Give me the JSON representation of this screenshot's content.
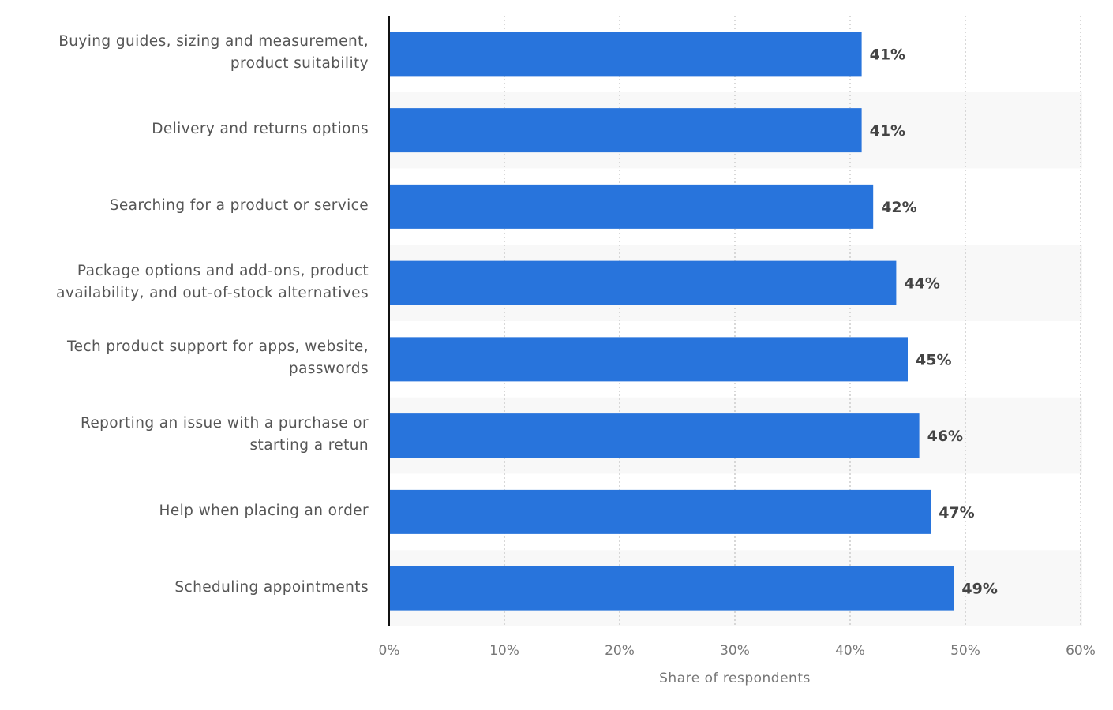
{
  "chart_data": {
    "type": "bar",
    "orientation": "horizontal",
    "categories": [
      "Buying guides, sizing and measurement,\nproduct suitability",
      "Delivery and returns options",
      "Searching for a product or service",
      "Package options and add-ons, product\navailability, and out-of-stock alternatives",
      "Tech product support for apps, website,\npasswords",
      "Reporting an issue with a purchase or\nstarting a retun",
      "Help when placing an order",
      "Scheduling appointments"
    ],
    "values": [
      41,
      41,
      42,
      44,
      45,
      46,
      47,
      49
    ],
    "value_labels": [
      "41%",
      "41%",
      "42%",
      "44%",
      "45%",
      "46%",
      "47%",
      "49%"
    ],
    "xlabel": "Share of respondents",
    "ylabel": "",
    "xlim": [
      0,
      60
    ],
    "ticks": [
      0,
      10,
      20,
      30,
      40,
      50,
      60
    ],
    "tick_labels": [
      "0%",
      "10%",
      "20%",
      "30%",
      "40%",
      "50%",
      "60%"
    ],
    "grid": true,
    "bar_color": "#2874dc",
    "band_color": "#f8f8f8"
  }
}
